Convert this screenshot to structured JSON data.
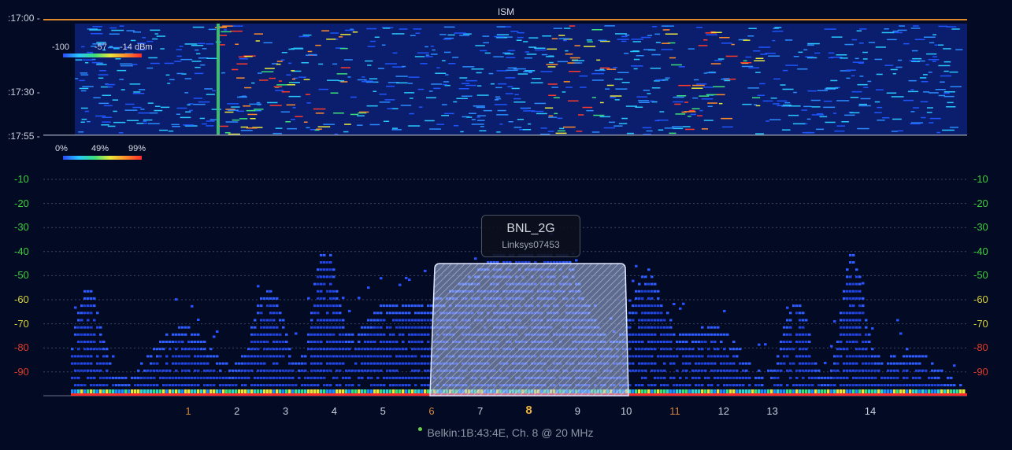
{
  "band": {
    "title": "ISM",
    "accent_color": "#e08a2c"
  },
  "waterfall": {
    "time_labels": [
      ":17:00 -",
      ":17:30 -",
      ":17:55 -"
    ],
    "power_legend": {
      "min": "-100",
      "mid": "-57",
      "max": "-14 dBm"
    },
    "occupancy_legend": {
      "min": "0%",
      "mid": "49%",
      "max": "99%"
    }
  },
  "spectrum": {
    "y_ticks": [
      "-10",
      "-20",
      "-30",
      "-40",
      "-50",
      "-60",
      "-70",
      "-80",
      "-90"
    ],
    "y_tick_colors": [
      "#3ccf3c",
      "#3ccf3c",
      "#3ccf3c",
      "#3ccf3c",
      "#3ccf3c",
      "#d8d23a",
      "#d8d23a",
      "#e23a2a",
      "#e23a2a"
    ],
    "channels": [
      "1",
      "2",
      "3",
      "4",
      "5",
      "6",
      "7",
      "8",
      "9",
      "10",
      "11",
      "12",
      "13",
      "14"
    ],
    "highlighted_channels": [
      "1",
      "6",
      "11"
    ],
    "active_channel": "8"
  },
  "tooltip": {
    "ssid": "BNL_2G",
    "subtitle": "Linksys07453"
  },
  "status": {
    "text": "Belkin:1B:43:4E, Ch. 8 @ 20 MHz",
    "dot_color": "#6ad04c"
  }
}
